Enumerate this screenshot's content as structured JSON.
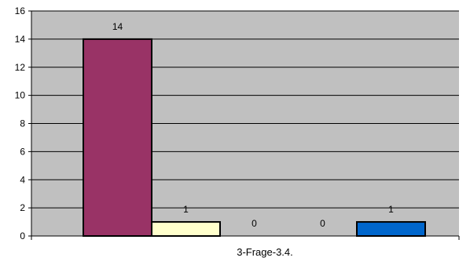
{
  "chart_data": {
    "type": "bar",
    "categories": [
      "3-Frage-3.4."
    ],
    "series": [
      {
        "values": [
          14
        ],
        "color": "#993366"
      },
      {
        "values": [
          1
        ],
        "color": "#FFFFCC"
      },
      {
        "values": [
          0
        ],
        "color": "#CCFFFF"
      },
      {
        "values": [
          0
        ],
        "color": "#660066"
      },
      {
        "values": [
          1
        ],
        "color": "#0066CC"
      }
    ],
    "title": "",
    "xlabel": "",
    "ylabel": "",
    "ylim": [
      0,
      16
    ],
    "yticks": [
      0,
      2,
      4,
      6,
      8,
      10,
      12,
      14,
      16
    ],
    "grid": true,
    "plot_background": "#C0C0C0",
    "gridline_color": "#000000",
    "bar_border_color": "#000000",
    "data_labels": [
      "14",
      "1",
      "0",
      "0",
      "1"
    ],
    "legend": "none"
  }
}
